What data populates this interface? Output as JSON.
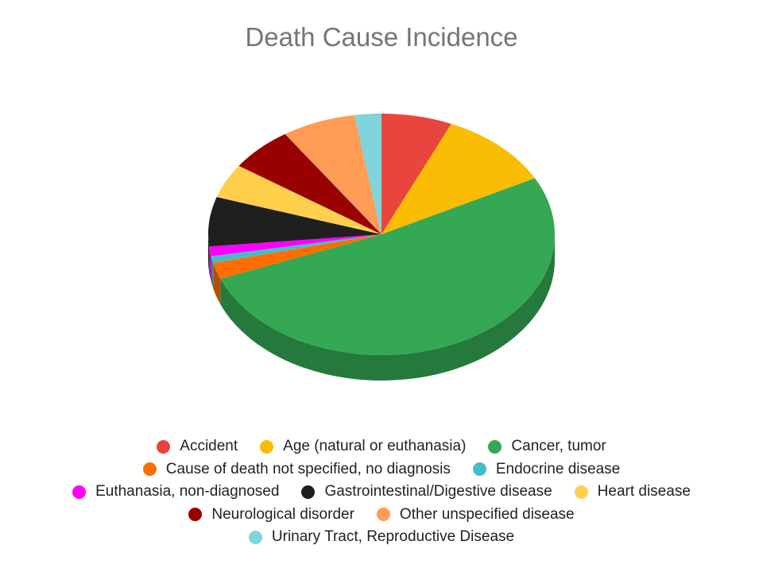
{
  "chart_data": {
    "type": "pie",
    "title": "Death Cause Incidence",
    "three_d": true,
    "legend_position": "bottom",
    "slices": [
      {
        "label": "Accident",
        "value": 6.6,
        "color": "#e8453c"
      },
      {
        "label": "Age (natural or euthanasia)",
        "value": 10.7,
        "color": "#fbbc04"
      },
      {
        "label": "Cancer, tumor",
        "value": 51.7,
        "color": "#34a853"
      },
      {
        "label": "Cause of death not specified, no diagnosis",
        "value": 2.2,
        "color": "#ff6d01"
      },
      {
        "label": "Endocrine disease",
        "value": 0.9,
        "color": "#46bdc6"
      },
      {
        "label": "Euthanasia, non-diagnosed",
        "value": 1.3,
        "color": "#ff00ff"
      },
      {
        "label": "Gastrointestinal/Digestive disease",
        "value": 6.6,
        "color": "#1f1f1f"
      },
      {
        "label": "Heart disease",
        "value": 4.6,
        "color": "#ffd04c"
      },
      {
        "label": "Neurological disorder",
        "value": 6.0,
        "color": "#990000"
      },
      {
        "label": "Other unspecified disease",
        "value": 6.9,
        "color": "#ff9c55"
      },
      {
        "label": "Urinary Tract, Reproductive Disease",
        "value": 2.5,
        "color": "#80d4dc"
      }
    ]
  }
}
